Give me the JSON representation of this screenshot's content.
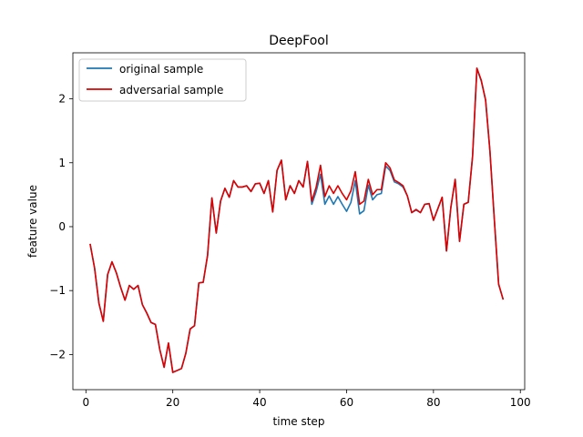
{
  "chart_data": {
    "type": "line",
    "title": "DeepFool",
    "xlabel": "time step",
    "ylabel": "feature value",
    "xlim": [
      -3,
      101
    ],
    "ylim": [
      -2.55,
      2.72
    ],
    "xticks": [
      0,
      20,
      40,
      60,
      80,
      100
    ],
    "yticks": [
      -2,
      -1,
      0,
      1,
      2
    ],
    "xtick_labels": [
      "0",
      "20",
      "40",
      "60",
      "80",
      "100"
    ],
    "ytick_labels": [
      "−2",
      "−1",
      "0",
      "1",
      "2"
    ],
    "legend_position": "top-left",
    "x": [
      1,
      2,
      3,
      4,
      5,
      6,
      7,
      8,
      9,
      10,
      11,
      12,
      13,
      14,
      15,
      16,
      17,
      18,
      19,
      20,
      21,
      22,
      23,
      24,
      25,
      26,
      27,
      28,
      29,
      30,
      31,
      32,
      33,
      34,
      35,
      36,
      37,
      38,
      39,
      40,
      41,
      42,
      43,
      44,
      45,
      46,
      47,
      48,
      49,
      50,
      51,
      52,
      53,
      54,
      55,
      56,
      57,
      58,
      59,
      60,
      61,
      62,
      63,
      64,
      65,
      66,
      67,
      68,
      69,
      70,
      71,
      72,
      73,
      74,
      75,
      76,
      77,
      78,
      79,
      80,
      81,
      82,
      83,
      84,
      85,
      86,
      87,
      88,
      89,
      90,
      91,
      92,
      93,
      94,
      95,
      96
    ],
    "series": [
      {
        "name": "original sample",
        "color": "#1f77b4",
        "values": [
          -0.28,
          -0.65,
          -1.2,
          -1.48,
          -0.75,
          -0.55,
          -0.72,
          -0.95,
          -1.15,
          -0.92,
          -0.98,
          -0.92,
          -1.22,
          -1.35,
          -1.5,
          -1.53,
          -1.92,
          -2.2,
          -1.82,
          -2.28,
          -2.25,
          -2.22,
          -1.98,
          -1.6,
          -1.55,
          -0.88,
          -0.87,
          -0.45,
          0.45,
          -0.1,
          0.4,
          0.6,
          0.46,
          0.72,
          0.62,
          0.62,
          0.64,
          0.55,
          0.67,
          0.68,
          0.52,
          0.72,
          0.23,
          0.88,
          1.04,
          0.42,
          0.64,
          0.52,
          0.72,
          0.62,
          1.02,
          0.35,
          0.55,
          0.82,
          0.35,
          0.48,
          0.35,
          0.47,
          0.35,
          0.24,
          0.38,
          0.72,
          0.2,
          0.25,
          0.65,
          0.42,
          0.5,
          0.52,
          0.95,
          0.88,
          0.7,
          0.67,
          0.62,
          0.48,
          0.22,
          0.26,
          0.22,
          0.35,
          0.36,
          0.1,
          0.28,
          0.46,
          -0.38,
          0.3,
          0.74,
          -0.23,
          0.35,
          0.38,
          1.1,
          2.47,
          2.28,
          1.98,
          1.18,
          0.12,
          -0.9,
          -1.13
        ]
      },
      {
        "name": "adversarial sample",
        "color": "#dd0000",
        "values": [
          -0.28,
          -0.65,
          -1.2,
          -1.48,
          -0.75,
          -0.55,
          -0.72,
          -0.95,
          -1.15,
          -0.92,
          -0.98,
          -0.92,
          -1.22,
          -1.35,
          -1.5,
          -1.53,
          -1.92,
          -2.2,
          -1.82,
          -2.28,
          -2.25,
          -2.22,
          -1.98,
          -1.6,
          -1.55,
          -0.88,
          -0.87,
          -0.45,
          0.45,
          -0.1,
          0.4,
          0.6,
          0.46,
          0.72,
          0.62,
          0.62,
          0.64,
          0.55,
          0.67,
          0.68,
          0.52,
          0.72,
          0.23,
          0.88,
          1.04,
          0.42,
          0.64,
          0.52,
          0.72,
          0.62,
          1.02,
          0.4,
          0.62,
          0.96,
          0.47,
          0.64,
          0.52,
          0.64,
          0.52,
          0.42,
          0.56,
          0.86,
          0.35,
          0.4,
          0.74,
          0.5,
          0.58,
          0.58,
          1.0,
          0.92,
          0.73,
          0.69,
          0.64,
          0.48,
          0.22,
          0.27,
          0.22,
          0.35,
          0.36,
          0.1,
          0.28,
          0.46,
          -0.38,
          0.3,
          0.74,
          -0.23,
          0.35,
          0.38,
          1.1,
          2.48,
          2.29,
          1.98,
          1.18,
          0.12,
          -0.9,
          -1.13
        ]
      }
    ]
  }
}
